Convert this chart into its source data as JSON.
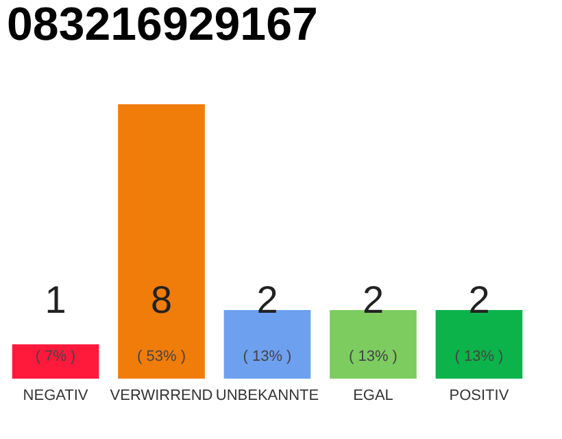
{
  "chart_data": {
    "type": "bar",
    "title": "083216929167",
    "categories": [
      "NEGATIV",
      "VERWIRREND",
      "UNBEKANNTE",
      "EGAL",
      "POSITIV"
    ],
    "values": [
      1,
      8,
      2,
      2,
      2
    ],
    "colors": [
      "#ff1a3c",
      "#f07c0a",
      "#6ea0f0",
      "#7ccc60",
      "#0cb34a"
    ],
    "ylim": [
      0,
      8
    ],
    "tick_labels": "x",
    "data_labels": true,
    "annotations": [
      "( 7% )",
      "( 53% )",
      "( 13% )",
      "( 13% )",
      "( 13% )"
    ]
  }
}
